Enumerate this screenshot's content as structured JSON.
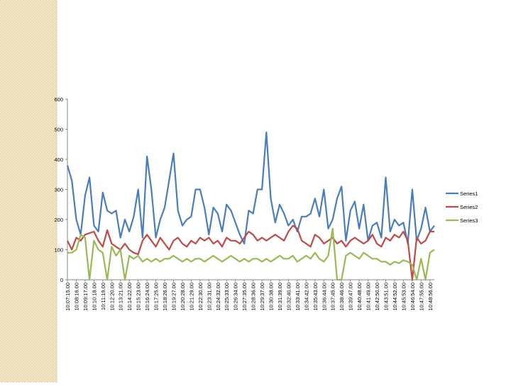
{
  "chart_data": {
    "type": "line",
    "categories": [
      "10:07:15.00",
      null,
      "10:08:16.00",
      null,
      "10:09:17.00",
      null,
      "10:10:18.00",
      null,
      "10:11:19.00",
      null,
      "10:12:20.00",
      null,
      "10:13:21.00",
      null,
      "10:14:22.00",
      null,
      "10:15:23.00",
      null,
      "10:16:24.00",
      null,
      "10:17:25.00",
      null,
      "10:18:26.00",
      null,
      "10:19:27.00",
      null,
      "10:20:28.00",
      null,
      "10:21:29.00",
      null,
      "10:22:30.00",
      null,
      "10:23:31.00",
      null,
      "10:24:32.00",
      null,
      "10:25:33.00",
      null,
      "10:26:34.00",
      null,
      "10:27:35.00",
      null,
      "10:28:36.00",
      null,
      "10:29:37.00",
      null,
      "10:30:38.00",
      null,
      "10:31:39.00",
      null,
      "10:32:40.00",
      null,
      "10:33:41.00",
      null,
      "10:34:42.00",
      null,
      "10:35:43.00",
      null,
      "10:36:44.00",
      null,
      "10:37:45.00",
      null,
      "10:38:46.00",
      null,
      "10:39:47.00",
      null,
      "10:40:48.00",
      null,
      "10:41:49.00",
      null,
      "10:42:50.00",
      null,
      "10:43:51.00",
      null,
      "10:44:52.00",
      null,
      "10:45:53.00",
      null,
      "10:46:54.00",
      null,
      "10:47:55.00",
      null,
      "10:48:56.00",
      null
    ],
    "series": [
      {
        "name": "Series1",
        "color": "#4a7ebb",
        "values": [
          380,
          330,
          200,
          150,
          280,
          340,
          180,
          160,
          290,
          230,
          220,
          230,
          140,
          200,
          160,
          210,
          300,
          140,
          410,
          300,
          140,
          200,
          240,
          330,
          420,
          230,
          180,
          200,
          210,
          300,
          300,
          240,
          150,
          240,
          220,
          160,
          250,
          230,
          190,
          150,
          120,
          230,
          220,
          300,
          300,
          490,
          270,
          190,
          250,
          220,
          180,
          200,
          160,
          210,
          210,
          220,
          270,
          210,
          300,
          170,
          200,
          270,
          310,
          130,
          230,
          260,
          170,
          250,
          130,
          180,
          190,
          140,
          340,
          160,
          200,
          180,
          190,
          120,
          300,
          130,
          170,
          240,
          160,
          180
        ]
      },
      {
        "name": "Series2",
        "color": "#be4b48",
        "values": [
          130,
          100,
          140,
          130,
          150,
          155,
          160,
          130,
          110,
          165,
          120,
          110,
          100,
          120,
          100,
          90,
          85,
          130,
          150,
          130,
          110,
          140,
          120,
          100,
          130,
          140,
          120,
          110,
          130,
          120,
          140,
          130,
          140,
          120,
          130,
          110,
          140,
          130,
          130,
          120,
          140,
          160,
          150,
          130,
          140,
          130,
          140,
          150,
          140,
          130,
          160,
          180,
          170,
          130,
          120,
          110,
          150,
          140,
          120,
          130,
          140,
          120,
          130,
          110,
          130,
          140,
          130,
          120,
          130,
          150,
          120,
          110,
          140,
          130,
          150,
          140,
          160,
          130,
          0,
          140,
          120,
          130,
          160,
          160
        ]
      },
      {
        "name": "Series3",
        "color": "#98b954",
        "values": [
          90,
          90,
          100,
          150,
          140,
          0,
          130,
          100,
          90,
          0,
          110,
          80,
          100,
          0,
          80,
          70,
          80,
          60,
          70,
          60,
          70,
          60,
          70,
          70,
          80,
          70,
          60,
          70,
          60,
          70,
          70,
          60,
          70,
          80,
          70,
          60,
          70,
          80,
          70,
          60,
          70,
          60,
          70,
          70,
          60,
          70,
          60,
          70,
          80,
          70,
          70,
          80,
          60,
          70,
          80,
          70,
          90,
          70,
          60,
          80,
          170,
          0,
          0,
          80,
          90,
          80,
          70,
          90,
          80,
          70,
          70,
          60,
          60,
          50,
          60,
          55,
          65,
          60,
          50,
          0,
          70,
          0,
          90,
          100
        ]
      }
    ],
    "ylim": [
      0,
      600
    ],
    "yticks": [
      0,
      100,
      200,
      300,
      400,
      500,
      600
    ],
    "grid": false,
    "legend": "right"
  }
}
